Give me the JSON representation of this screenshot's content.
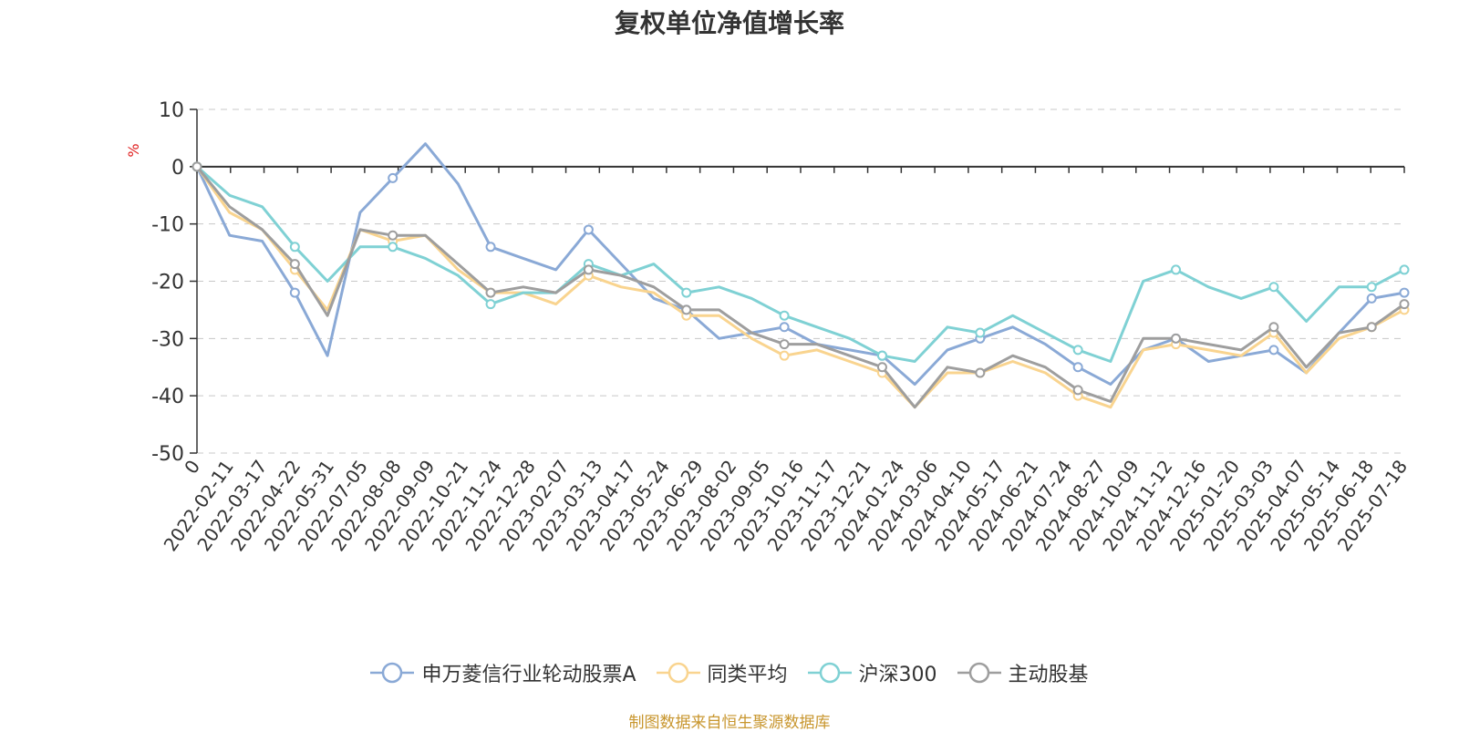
{
  "chart_data": {
    "type": "line",
    "title": "复权单位净值增长率",
    "ylabel": "%",
    "ylim": [
      -50,
      10
    ],
    "y_ticks": [
      10,
      0,
      -10,
      -20,
      -30,
      -40,
      -50
    ],
    "x_tick_labels": [
      "0",
      "2022-02-11",
      "2022-03-17",
      "2022-04-22",
      "2022-05-31",
      "2022-07-05",
      "2022-08-08",
      "2022-09-09",
      "2022-10-21",
      "2022-11-24",
      "2022-12-28",
      "2023-02-07",
      "2023-03-13",
      "2023-04-17",
      "2023-05-24",
      "2023-06-29",
      "2023-08-02",
      "2023-09-05",
      "2023-10-16",
      "2023-11-17",
      "2023-12-21",
      "2024-01-24",
      "2024-03-06",
      "2024-04-10",
      "2024-05-17",
      "2024-06-21",
      "2024-07-24",
      "2024-08-27",
      "2024-10-09",
      "2024-11-12",
      "2024-12-16",
      "2025-01-20",
      "2025-03-03",
      "2025-04-07",
      "2025-05-14",
      "2025-06-18",
      "2025-07-18"
    ],
    "grid": true,
    "legend_position": "bottom",
    "series": [
      {
        "name": "申万菱信行业轮动股票A",
        "color": "#8aa9d6",
        "values": [
          0,
          -12,
          -13,
          -22,
          -33,
          -8,
          -2,
          4,
          -3,
          -14,
          -16,
          -18,
          -11,
          -17,
          -23,
          -25,
          -30,
          -29,
          -28,
          -31,
          -32,
          -33,
          -38,
          -32,
          -30,
          -28,
          -31,
          -35,
          -38,
          -32,
          -30,
          -34,
          -33,
          -32,
          -36,
          -29,
          -23,
          -22
        ]
      },
      {
        "name": "同类平均",
        "color": "#f9d48f",
        "values": [
          0,
          -8,
          -11,
          -18,
          -25,
          -11,
          -13,
          -12,
          -18,
          -22,
          -22,
          -24,
          -19,
          -21,
          -22,
          -26,
          -26,
          -30,
          -33,
          -32,
          -34,
          -36,
          -42,
          -36,
          -36,
          -34,
          -36,
          -40,
          -42,
          -32,
          -31,
          -32,
          -33,
          -29,
          -36,
          -30,
          -28,
          -25
        ]
      },
      {
        "name": "沪深300",
        "color": "#7fd1d4",
        "values": [
          0,
          -5,
          -7,
          -14,
          -20,
          -14,
          -14,
          -16,
          -19,
          -24,
          -22,
          -22,
          -17,
          -19,
          -17,
          -22,
          -21,
          -23,
          -26,
          -28,
          -30,
          -33,
          -34,
          -28,
          -29,
          -26,
          -29,
          -32,
          -34,
          -20,
          -18,
          -21,
          -23,
          -21,
          -27,
          -21,
          -21,
          -18
        ]
      },
      {
        "name": "主动股基",
        "color": "#9e9e9e",
        "values": [
          0,
          -7,
          -11,
          -17,
          -26,
          -11,
          -12,
          -12,
          -17,
          -22,
          -21,
          -22,
          -18,
          -19,
          -21,
          -25,
          -25,
          -29,
          -31,
          -31,
          -33,
          -35,
          -42,
          -35,
          -36,
          -33,
          -35,
          -39,
          -41,
          -30,
          -30,
          -31,
          -32,
          -28,
          -35,
          -29,
          -28,
          -24
        ]
      }
    ]
  },
  "source_text": "制图数据来自恒生聚源数据库"
}
